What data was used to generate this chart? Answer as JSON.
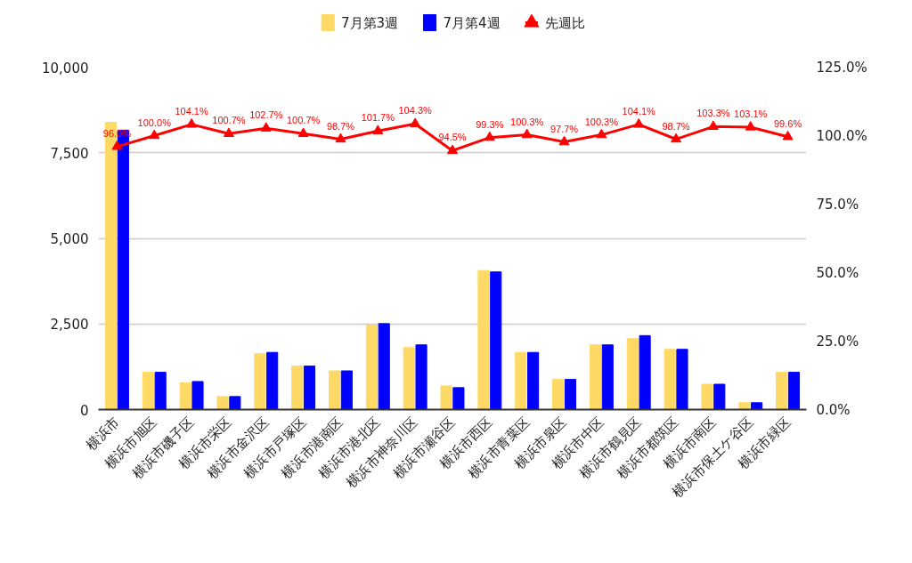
{
  "chart_data": {
    "type": "bar",
    "categories": [
      "横浜市",
      "横浜市旭区",
      "横浜市磯子区",
      "横浜市栄区",
      "横浜市金沢区",
      "横浜市戸塚区",
      "横浜市港南区",
      "横浜市港北区",
      "横浜市神奈川区",
      "横浜市瀬谷区",
      "横浜市西区",
      "横浜市青葉区",
      "横浜市泉区",
      "横浜市中区",
      "横浜市鶴見区",
      "横浜市都筑区",
      "横浜市南区",
      "横浜市保土ケ谷区",
      "横浜市緑区"
    ],
    "series": [
      {
        "name": "7月第3週",
        "color": "#ffd966",
        "values": [
          8390,
          1090,
          780,
          380,
          1630,
          1270,
          1130,
          2470,
          1810,
          690,
          4060,
          1670,
          880,
          1890,
          2070,
          1760,
          740,
          200,
          1090
        ]
      },
      {
        "name": "7月第4週",
        "color": "#0000ff",
        "values": [
          8160,
          1090,
          820,
          380,
          1670,
          1270,
          1130,
          2510,
          1890,
          640,
          4020,
          1670,
          880,
          1890,
          2160,
          1760,
          740,
          200,
          1090
        ]
      },
      {
        "name": "先週比",
        "type": "line",
        "axis": "y2",
        "color": "#ff0000",
        "marker": "triangle",
        "value_labels": [
          "96.0%",
          "100.0%",
          "104.1%",
          "100.7%",
          "102.7%",
          "100.7%",
          "98.7%",
          "101.7%",
          "104.3%",
          "94.5%",
          "99.3%",
          "100.3%",
          "97.7%",
          "100.3%",
          "104.1%",
          "98.7%",
          "103.3%",
          "103.1%",
          "99.6%"
        ],
        "values": [
          96.0,
          100.0,
          104.1,
          100.7,
          102.7,
          100.7,
          98.7,
          101.7,
          104.3,
          94.5,
          99.3,
          100.3,
          97.7,
          100.3,
          104.1,
          98.7,
          103.3,
          103.1,
          99.6
        ]
      }
    ],
    "ylim": [
      0,
      10000
    ],
    "yticks": [
      {
        "value": 0,
        "label": "0"
      },
      {
        "value": 2500,
        "label": "2,500"
      },
      {
        "value": 5000,
        "label": "5,000"
      },
      {
        "value": 7500,
        "label": "7,500"
      },
      {
        "value": 10000,
        "label": "10,000"
      }
    ],
    "y2lim": [
      0,
      125
    ],
    "y2ticks": [
      {
        "value": 0,
        "label": "0.0%"
      },
      {
        "value": 25,
        "label": "25.0%"
      },
      {
        "value": 50,
        "label": "50.0%"
      },
      {
        "value": 75,
        "label": "75.0%"
      },
      {
        "value": 100,
        "label": "100.0%"
      },
      {
        "value": 125,
        "label": "125.0%"
      }
    ],
    "grid": "y",
    "legend": "top"
  }
}
